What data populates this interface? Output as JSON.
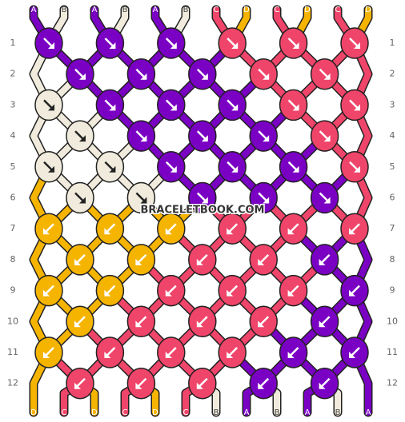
{
  "strings_top": [
    "A",
    "B",
    "A",
    "B",
    "A",
    "B",
    "C",
    "D",
    "C",
    "D",
    "C",
    "D"
  ],
  "strings_bottom": [
    "D",
    "C",
    "D",
    "C",
    "D",
    "C",
    "B",
    "A",
    "B",
    "A",
    "B",
    "A"
  ],
  "colors": {
    "A": "#7a00c4",
    "B": "#f0ebdc",
    "C": "#f0456a",
    "D": "#f5b400"
  },
  "row_numbers": [
    "1",
    "2",
    "3",
    "4",
    "5",
    "6",
    "7",
    "8",
    "9",
    "10",
    "11",
    "12"
  ],
  "knots": [
    [
      {
        "c": "A",
        "d": "se"
      },
      {
        "c": "A",
        "d": "se"
      },
      {
        "c": "A",
        "d": "se"
      },
      {
        "c": "C",
        "d": "se"
      },
      {
        "c": "C",
        "d": "se"
      },
      {
        "c": "C",
        "d": "se"
      }
    ],
    [
      {
        "c": "A",
        "d": "se"
      },
      {
        "c": "A",
        "d": "se"
      },
      {
        "c": "A",
        "d": "se"
      },
      {
        "c": "C",
        "d": "se"
      },
      {
        "c": "C",
        "d": "se"
      }
    ],
    [
      {
        "c": "B",
        "d": "se"
      },
      {
        "c": "A",
        "d": "se"
      },
      {
        "c": "A",
        "d": "se"
      },
      {
        "c": "A",
        "d": "se"
      },
      {
        "c": "C",
        "d": "se"
      },
      {
        "c": "C",
        "d": "se"
      }
    ],
    [
      {
        "c": "B",
        "d": "se"
      },
      {
        "c": "A",
        "d": "se"
      },
      {
        "c": "A",
        "d": "se"
      },
      {
        "c": "A",
        "d": "se"
      },
      {
        "c": "C",
        "d": "se"
      }
    ],
    [
      {
        "c": "B",
        "d": "se"
      },
      {
        "c": "B",
        "d": "se"
      },
      {
        "c": "A",
        "d": "se"
      },
      {
        "c": "A",
        "d": "se"
      },
      {
        "c": "A",
        "d": "se"
      },
      {
        "c": "C",
        "d": "se"
      }
    ],
    [
      {
        "c": "B",
        "d": "se"
      },
      {
        "c": "B",
        "d": "se"
      },
      {
        "c": "A",
        "d": "se"
      },
      {
        "c": "A",
        "d": "se"
      },
      {
        "c": "A",
        "d": "se"
      }
    ],
    [
      {
        "c": "D",
        "d": "sw"
      },
      {
        "c": "D",
        "d": "sw"
      },
      {
        "c": "D",
        "d": "sw"
      },
      {
        "c": "C",
        "d": "sw"
      },
      {
        "c": "C",
        "d": "sw"
      },
      {
        "c": "C",
        "d": "sw"
      }
    ],
    [
      {
        "c": "D",
        "d": "sw"
      },
      {
        "c": "D",
        "d": "sw"
      },
      {
        "c": "C",
        "d": "sw"
      },
      {
        "c": "C",
        "d": "sw"
      },
      {
        "c": "A",
        "d": "sw"
      }
    ],
    [
      {
        "c": "D",
        "d": "sw"
      },
      {
        "c": "D",
        "d": "sw"
      },
      {
        "c": "C",
        "d": "sw"
      },
      {
        "c": "C",
        "d": "sw"
      },
      {
        "c": "C",
        "d": "sw"
      },
      {
        "c": "A",
        "d": "sw"
      }
    ],
    [
      {
        "c": "D",
        "d": "sw"
      },
      {
        "c": "C",
        "d": "sw"
      },
      {
        "c": "C",
        "d": "sw"
      },
      {
        "c": "C",
        "d": "sw"
      },
      {
        "c": "A",
        "d": "sw"
      }
    ],
    [
      {
        "c": "D",
        "d": "sw"
      },
      {
        "c": "C",
        "d": "sw"
      },
      {
        "c": "C",
        "d": "sw"
      },
      {
        "c": "C",
        "d": "sw"
      },
      {
        "c": "A",
        "d": "sw"
      },
      {
        "c": "A",
        "d": "sw"
      }
    ],
    [
      {
        "c": "C",
        "d": "sw"
      },
      {
        "c": "C",
        "d": "sw"
      },
      {
        "c": "C",
        "d": "sw"
      },
      {
        "c": "A",
        "d": "sw"
      },
      {
        "c": "A",
        "d": "sw"
      }
    ]
  ],
  "watermark": "BRACELETBOOK.COM"
}
